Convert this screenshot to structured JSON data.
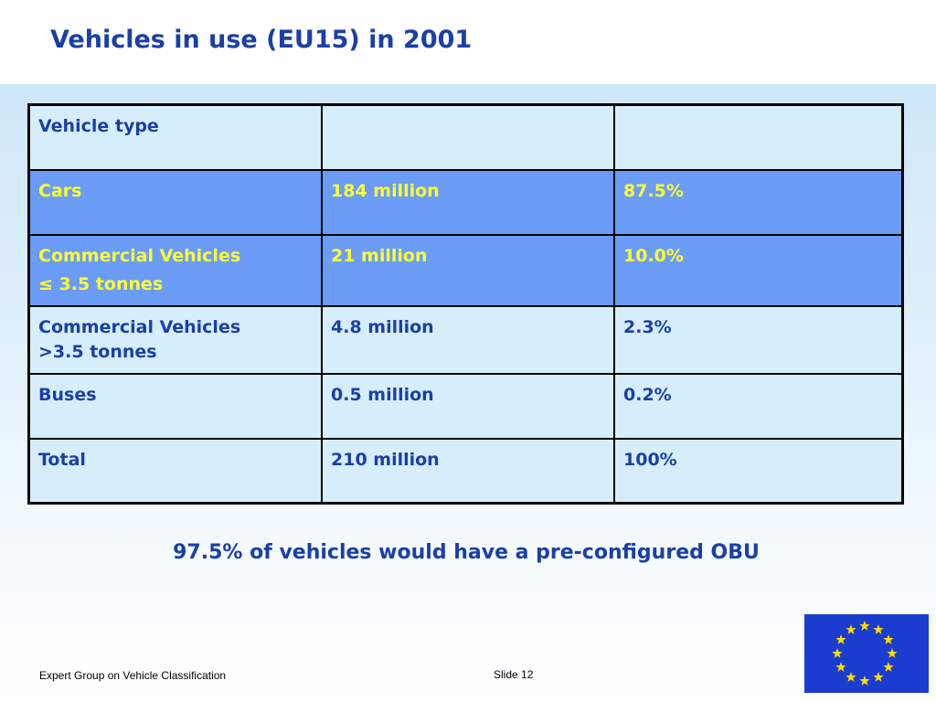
{
  "slide": {
    "title": "Vehicles in use (EU15) in 2001",
    "note": "97.5% of vehicles would have a pre-configured OBU",
    "footer_left": "Expert Group on Vehicle Classification",
    "footer_slide": "Slide 12"
  },
  "table": {
    "header": [
      "Vehicle type",
      "",
      ""
    ],
    "rows": [
      {
        "type_line1": "Cars",
        "type_line2": "",
        "count": "184 million",
        "share": "87.5%",
        "highlighted": true
      },
      {
        "type_line1": "Commercial Vehicles",
        "type_line2": "≤ 3.5 tonnes",
        "count": "21 million",
        "share": "10.0%",
        "highlighted": true
      },
      {
        "type_line1": "Commercial Vehicles",
        "type_line2": ">3.5 tonnes",
        "count": "4.8 million",
        "share": "2.3%",
        "highlighted": false
      },
      {
        "type_line1": "Buses",
        "type_line2": "",
        "count": "0.5 million",
        "share": "0.2%",
        "highlighted": false
      },
      {
        "type_line1": "Total",
        "type_line2": "",
        "count": "210 million",
        "share": "100%",
        "highlighted": false
      }
    ]
  },
  "colors": {
    "title": "#1a3fa8",
    "highlight_row_bg": "#6a9cf8",
    "highlight_text": "#ffff33",
    "light_row_bg": "#d6eefc",
    "flag_blue": "#1b3dcf",
    "flag_star": "#ffdd00"
  },
  "logo": {
    "icon": "eu-flag-icon"
  }
}
